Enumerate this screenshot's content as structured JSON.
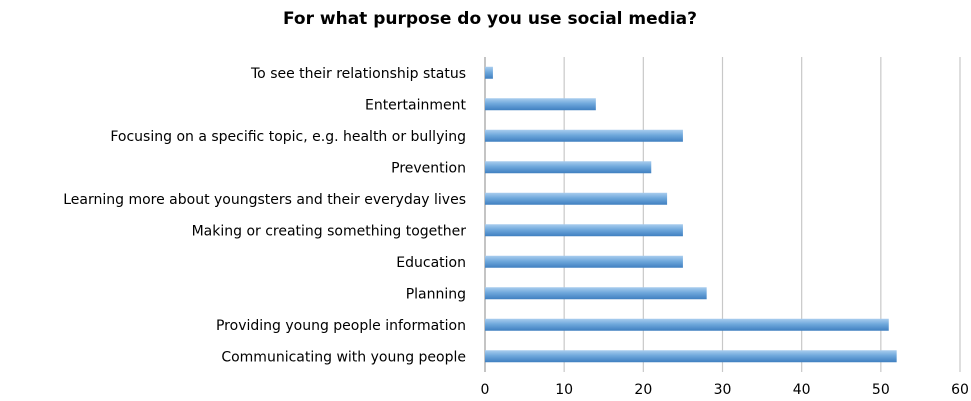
{
  "chart_data": {
    "type": "bar",
    "orientation": "horizontal",
    "title": "For what purpose do you use social media?",
    "categories": [
      "To see their relationship status",
      "Entertainment",
      "Focusing on a specific topic, e.g. health or bullying",
      "Prevention",
      "Learning more about youngsters and their everyday lives",
      "Making or creating something together",
      "Education",
      "Planning",
      "Providing young people information",
      "Communicating with young people"
    ],
    "values": [
      1,
      14,
      25,
      21,
      23,
      25,
      25,
      28,
      51,
      52
    ],
    "xlim": [
      0,
      60
    ],
    "xticks": [
      "0",
      "10",
      "20",
      "30",
      "40",
      "50",
      "60"
    ],
    "xlabel": "",
    "ylabel": "",
    "grid": true,
    "legend": "none",
    "bar_color": "#6fa8dc"
  }
}
